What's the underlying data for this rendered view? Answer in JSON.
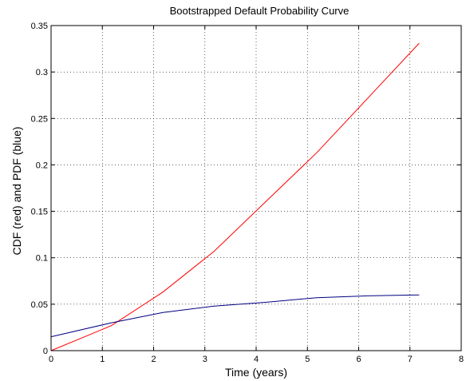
{
  "chart_data": {
    "type": "line",
    "title": "Bootstrapped Default Probability Curve",
    "xlabel": "Time (years)",
    "ylabel": "CDF (red) and PDF (blue)",
    "xlim": [
      0,
      8
    ],
    "ylim": [
      0,
      0.35
    ],
    "xticks": [
      "0",
      "1",
      "2",
      "3",
      "4",
      "5",
      "6",
      "7",
      "8"
    ],
    "yticks": [
      "0",
      "0.05",
      "0.1",
      "0.15",
      "0.2",
      "0.25",
      "0.3",
      "0.35"
    ],
    "grid": true,
    "series": [
      {
        "color": "#ff0000",
        "x": [
          0,
          1.18,
          2.18,
          3.18,
          4.18,
          5.18,
          6.18,
          7.18
        ],
        "y": [
          0,
          0.027,
          0.063,
          0.107,
          0.16,
          0.213,
          0.272,
          0.331
        ]
      },
      {
        "color": "#000080",
        "x": [
          0,
          1.18,
          2.18,
          3.18,
          4.18,
          5.18,
          6.18,
          7.18
        ],
        "y": [
          0.015,
          0.03,
          0.041,
          0.048,
          0.052,
          0.057,
          0.059,
          0.06
        ]
      }
    ]
  }
}
